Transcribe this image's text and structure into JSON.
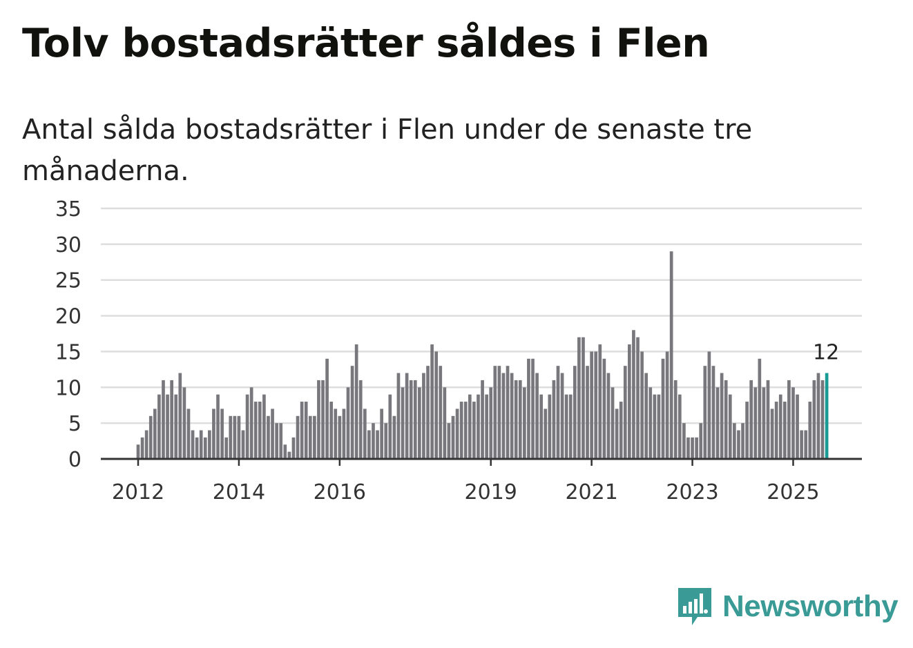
{
  "title": "Tolv bostadsrätter såldes i Flen",
  "subtitle": "Antal sålda bostadsrätter i Flen under de senaste tre månaderna.",
  "brand": {
    "name": "Newsworthy",
    "color": "#3a9b96",
    "icon": "newsworthy-logo-icon"
  },
  "colors": {
    "bar": "#77777c",
    "highlight": "#1a9a94",
    "grid": "#dddddd",
    "axis": "#333333"
  },
  "chart_data": {
    "type": "bar",
    "title": "Tolv bostadsrätter såldes i Flen",
    "xlabel": "",
    "ylabel": "",
    "ylim": [
      0,
      35
    ],
    "yticks": [
      0,
      5,
      10,
      15,
      20,
      25,
      30,
      35
    ],
    "xtick_labels": [
      {
        "label": "2012",
        "index": 0
      },
      {
        "label": "2014",
        "index": 24
      },
      {
        "label": "2016",
        "index": 48
      },
      {
        "label": "2019",
        "index": 84
      },
      {
        "label": "2021",
        "index": 108
      },
      {
        "label": "2023",
        "index": 132
      },
      {
        "label": "2025",
        "index": 156
      }
    ],
    "first_index": -8,
    "grid": true,
    "highlight_label": "12",
    "series": [
      {
        "name": "Antal sålda bostadsrätter",
        "values": [
          0,
          0,
          0,
          0,
          0,
          0,
          0,
          0,
          2,
          3,
          4,
          6,
          7,
          9,
          11,
          9,
          11,
          9,
          12,
          10,
          7,
          4,
          3,
          4,
          3,
          4,
          7,
          9,
          7,
          3,
          6,
          6,
          6,
          4,
          9,
          10,
          8,
          8,
          9,
          6,
          7,
          5,
          5,
          2,
          1,
          3,
          6,
          8,
          8,
          6,
          6,
          11,
          11,
          14,
          8,
          7,
          6,
          7,
          10,
          13,
          16,
          11,
          7,
          4,
          5,
          4,
          7,
          5,
          9,
          6,
          12,
          10,
          12,
          11,
          11,
          10,
          12,
          13,
          16,
          15,
          13,
          10,
          5,
          6,
          7,
          8,
          8,
          9,
          8,
          9,
          11,
          9,
          10,
          13,
          13,
          12,
          13,
          12,
          11,
          11,
          10,
          14,
          14,
          12,
          9,
          7,
          9,
          11,
          13,
          12,
          9,
          9,
          13,
          17,
          17,
          13,
          15,
          15,
          16,
          14,
          12,
          10,
          7,
          8,
          13,
          16,
          18,
          17,
          15,
          12,
          10,
          9,
          9,
          14,
          15,
          29,
          11,
          9,
          5,
          3,
          3,
          3,
          5,
          13,
          15,
          13,
          10,
          12,
          11,
          9,
          5,
          4,
          5,
          8,
          11,
          10,
          14,
          10,
          11,
          7,
          8,
          9,
          8,
          11,
          10,
          9,
          4,
          4,
          8,
          11,
          12,
          11,
          12
        ]
      }
    ]
  }
}
